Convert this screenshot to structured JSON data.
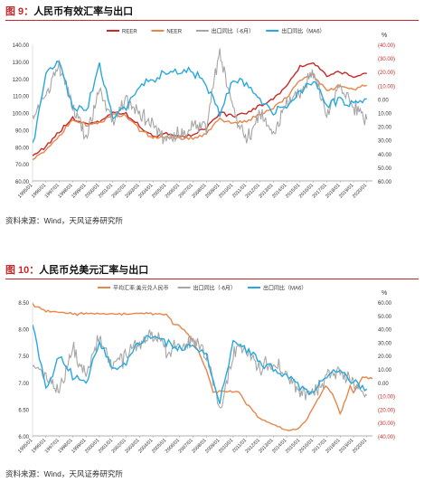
{
  "figures": [
    {
      "title_prefix": "图 9：",
      "title": "人民币有效汇率与出口",
      "source": "资料来源：Wind，天风证券研究所"
    },
    {
      "title_prefix": "图 10：",
      "title": "人民币兑美元汇率与出口",
      "source": "资料来源：Wind，天风证券研究所"
    }
  ],
  "chart_data": [
    {
      "type": "line",
      "title": "人民币有效汇率与出口",
      "x": [
        "1995/01",
        "1996/01",
        "1997/01",
        "1998/01",
        "1999/01",
        "2000/01",
        "2001/01",
        "2002/01",
        "2003/01",
        "2004/01",
        "2005/01",
        "2006/01",
        "2007/01",
        "2008/01",
        "2009/01",
        "2010/01",
        "2011/01",
        "2012/01",
        "2013/01",
        "2014/01",
        "2015/01",
        "2016/01",
        "2017/01",
        "2018/01",
        "2019/01",
        "2020/01"
      ],
      "xlim": [
        "1995/01",
        "2020/06"
      ],
      "left_axis": {
        "ylim": [
          60,
          140
        ],
        "ticks": [
          "60.00",
          "70.00",
          "80.00",
          "90.00",
          "100.00",
          "110.00",
          "120.00",
          "130.00",
          "140.00"
        ]
      },
      "right_axis": {
        "label": "%",
        "ylim": [
          -40,
          60
        ],
        "inverted": true,
        "ticks": [
          "(40.00)",
          "(30.00)",
          "(20.00)",
          "(10.00)",
          "0.00",
          "10.00",
          "20.00",
          "30.00",
          "40.00",
          "50.00",
          "60.00"
        ]
      },
      "legend_position": "top-right",
      "series": [
        {
          "name": "REER",
          "axis": "left",
          "color": "#c62828",
          "points": [
            [
              "1995/01",
              74
            ],
            [
              "1996/01",
              80
            ],
            [
              "1997/01",
              89
            ],
            [
              "1998/01",
              97
            ],
            [
              "1999/01",
              93
            ],
            [
              "2000/01",
              95
            ],
            [
              "2001/01",
              100
            ],
            [
              "2002/01",
              99
            ],
            [
              "2003/01",
              92
            ],
            [
              "2004/01",
              86
            ],
            [
              "2005/01",
              88
            ],
            [
              "2006/01",
              86
            ],
            [
              "2007/01",
              87
            ],
            [
              "2008/01",
              91
            ],
            [
              "2009/01",
              100
            ],
            [
              "2010/01",
              98
            ],
            [
              "2011/01",
              100
            ],
            [
              "2012/01",
              104
            ],
            [
              "2013/01",
              108
            ],
            [
              "2014/01",
              116
            ],
            [
              "2015/01",
              127
            ],
            [
              "2016/01",
              129
            ],
            [
              "2017/01",
              122
            ],
            [
              "2018/01",
              124
            ],
            [
              "2019/01",
              121
            ],
            [
              "2020/01",
              123
            ]
          ]
        },
        {
          "name": "NEER",
          "axis": "left",
          "color": "#e8864a",
          "points": [
            [
              "1995/01",
              72
            ],
            [
              "1996/01",
              78
            ],
            [
              "1997/01",
              86
            ],
            [
              "1998/01",
              96
            ],
            [
              "1999/01",
              93
            ],
            [
              "2000/01",
              94
            ],
            [
              "2001/01",
              99
            ],
            [
              "2002/01",
              98
            ],
            [
              "2003/01",
              90
            ],
            [
              "2004/01",
              85
            ],
            [
              "2005/01",
              86
            ],
            [
              "2006/01",
              85
            ],
            [
              "2007/01",
              85
            ],
            [
              "2008/01",
              88
            ],
            [
              "2009/01",
              96
            ],
            [
              "2010/01",
              94
            ],
            [
              "2011/01",
              95
            ],
            [
              "2012/01",
              99
            ],
            [
              "2013/01",
              103
            ],
            [
              "2014/01",
              109
            ],
            [
              "2015/01",
              119
            ],
            [
              "2016/01",
              122
            ],
            [
              "2017/01",
              113
            ],
            [
              "2018/01",
              116
            ],
            [
              "2019/01",
              114
            ],
            [
              "2020/01",
              116
            ]
          ]
        },
        {
          "name": "出口同比（-6月）",
          "axis": "right",
          "color": "#a6a6a6",
          "points": [
            [
              "1995/01",
              15
            ],
            [
              "1996/01",
              -5
            ],
            [
              "1997/01",
              -25
            ],
            [
              "1998/01",
              5
            ],
            [
              "1999/01",
              30
            ],
            [
              "2000/01",
              -5
            ],
            [
              "2001/01",
              15
            ],
            [
              "2002/01",
              0
            ],
            [
              "2003/01",
              10
            ],
            [
              "2004/01",
              20
            ],
            [
              "2005/01",
              30
            ],
            [
              "2006/01",
              25
            ],
            [
              "2007/01",
              20
            ],
            [
              "2008/01",
              20
            ],
            [
              "2009/01",
              -35
            ],
            [
              "2010/01",
              10
            ],
            [
              "2011/01",
              30
            ],
            [
              "2012/01",
              10
            ],
            [
              "2013/01",
              25
            ],
            [
              "2014/01",
              5
            ],
            [
              "2015/01",
              -5
            ],
            [
              "2016/01",
              -20
            ],
            [
              "2017/01",
              10
            ],
            [
              "2018/01",
              -10
            ],
            [
              "2019/01",
              5
            ],
            [
              "2020/01",
              15
            ]
          ]
        },
        {
          "name": "出口同比（MA6）",
          "axis": "right",
          "color": "#29a8df",
          "points": [
            [
              "1995/01",
              35
            ],
            [
              "1996/01",
              -20
            ],
            [
              "1997/01",
              -25
            ],
            [
              "1998/01",
              5
            ],
            [
              "1999/01",
              10
            ],
            [
              "2000/01",
              -25
            ],
            [
              "2001/01",
              15
            ],
            [
              "2002/01",
              5
            ],
            [
              "2003/01",
              -10
            ],
            [
              "2004/01",
              -15
            ],
            [
              "2005/01",
              -20
            ],
            [
              "2006/01",
              -20
            ],
            [
              "2007/01",
              -20
            ],
            [
              "2008/01",
              -10
            ],
            [
              "2009/01",
              10
            ],
            [
              "2010/01",
              -15
            ],
            [
              "2011/01",
              -10
            ],
            [
              "2012/01",
              0
            ],
            [
              "2013/01",
              10
            ],
            [
              "2014/01",
              5
            ],
            [
              "2015/01",
              -5
            ],
            [
              "2016/01",
              -15
            ],
            [
              "2017/01",
              5
            ],
            [
              "2018/01",
              0
            ],
            [
              "2019/01",
              5
            ],
            [
              "2020/01",
              0
            ]
          ]
        }
      ]
    },
    {
      "type": "line",
      "title": "人民币兑美元汇率与出口",
      "x": [
        "1995/01",
        "1996/01",
        "1997/01",
        "1998/01",
        "1999/01",
        "2000/01",
        "2001/01",
        "2002/01",
        "2003/01",
        "2004/01",
        "2005/01",
        "2006/01",
        "2007/01",
        "2008/01",
        "2009/01",
        "2010/01",
        "2011/01",
        "2012/01",
        "2013/01",
        "2014/01",
        "2015/01",
        "2016/01",
        "2017/01",
        "2018/01",
        "2019/01",
        "2020/01"
      ],
      "xlim": [
        "1995/01",
        "2020/06"
      ],
      "left_axis": {
        "ylim": [
          6.0,
          8.5
        ],
        "ticks": [
          "6.00",
          "6.50",
          "7.00",
          "7.50",
          "8.00",
          "8.50"
        ]
      },
      "right_axis": {
        "label": "%",
        "ylim": [
          -40,
          60
        ],
        "ticks": [
          "(40.00)",
          "(30.00)",
          "(20.00)",
          "(10.00)",
          "0.00",
          "10.00",
          "20.00",
          "30.00",
          "40.00",
          "50.00",
          "60.00"
        ]
      },
      "legend_position": "top",
      "series": [
        {
          "name": "平均汇率:美元兑人民币",
          "axis": "left",
          "color": "#e8864a",
          "points": [
            [
              "1995/01",
              8.45
            ],
            [
              "1996/01",
              8.33
            ],
            [
              "1997/01",
              8.3
            ],
            [
              "1998/01",
              8.28
            ],
            [
              "2004/01",
              8.28
            ],
            [
              "2005/01",
              8.28
            ],
            [
              "2005/07",
              8.11
            ],
            [
              "2006/01",
              8.05
            ],
            [
              "2007/01",
              7.79
            ],
            [
              "2008/01",
              7.24
            ],
            [
              "2008/07",
              6.83
            ],
            [
              "2010/06",
              6.83
            ],
            [
              "2011/01",
              6.6
            ],
            [
              "2012/01",
              6.31
            ],
            [
              "2013/01",
              6.23
            ],
            [
              "2014/01",
              6.1
            ],
            [
              "2015/01",
              6.15
            ],
            [
              "2015/08",
              6.35
            ],
            [
              "2016/01",
              6.55
            ],
            [
              "2016/12",
              6.93
            ],
            [
              "2017/06",
              6.8
            ],
            [
              "2018/01",
              6.4
            ],
            [
              "2018/10",
              6.92
            ],
            [
              "2019/01",
              6.8
            ],
            [
              "2019/09",
              7.1
            ],
            [
              "2020/06",
              7.07
            ]
          ]
        },
        {
          "name": "出口同比（-6月）",
          "axis": "right",
          "color": "#a6a6a6",
          "points": [
            [
              "1995/01",
              15
            ],
            [
              "1996/01",
              5
            ],
            [
              "1997/01",
              -5
            ],
            [
              "1998/01",
              25
            ],
            [
              "1999/01",
              5
            ],
            [
              "2000/01",
              35
            ],
            [
              "2001/01",
              10
            ],
            [
              "2002/01",
              20
            ],
            [
              "2003/01",
              30
            ],
            [
              "2004/01",
              35
            ],
            [
              "2005/01",
              25
            ],
            [
              "2006/01",
              25
            ],
            [
              "2007/01",
              30
            ],
            [
              "2008/01",
              20
            ],
            [
              "2009/01",
              -20
            ],
            [
              "2010/01",
              20
            ],
            [
              "2011/01",
              25
            ],
            [
              "2012/01",
              10
            ],
            [
              "2013/01",
              15
            ],
            [
              "2014/01",
              5
            ],
            [
              "2015/01",
              -5
            ],
            [
              "2016/01",
              -10
            ],
            [
              "2017/01",
              5
            ],
            [
              "2018/01",
              10
            ],
            [
              "2019/01",
              0
            ],
            [
              "2020/01",
              -10
            ]
          ]
        },
        {
          "name": "出口同比（MA6）",
          "axis": "right",
          "color": "#29a8df",
          "points": [
            [
              "1995/01",
              45
            ],
            [
              "1996/01",
              -5
            ],
            [
              "1997/01",
              20
            ],
            [
              "1998/01",
              5
            ],
            [
              "1999/01",
              0
            ],
            [
              "2000/01",
              30
            ],
            [
              "2001/01",
              10
            ],
            [
              "2002/01",
              15
            ],
            [
              "2003/01",
              30
            ],
            [
              "2004/01",
              35
            ],
            [
              "2005/01",
              30
            ],
            [
              "2006/01",
              25
            ],
            [
              "2007/01",
              27
            ],
            [
              "2008/01",
              20
            ],
            [
              "2009/01",
              -15
            ],
            [
              "2010/01",
              30
            ],
            [
              "2011/01",
              25
            ],
            [
              "2012/01",
              15
            ],
            [
              "2013/01",
              10
            ],
            [
              "2014/01",
              5
            ],
            [
              "2015/01",
              -3
            ],
            [
              "2016/01",
              -8
            ],
            [
              "2017/01",
              5
            ],
            [
              "2018/01",
              10
            ],
            [
              "2019/01",
              0
            ],
            [
              "2020/01",
              -5
            ]
          ]
        }
      ]
    }
  ]
}
